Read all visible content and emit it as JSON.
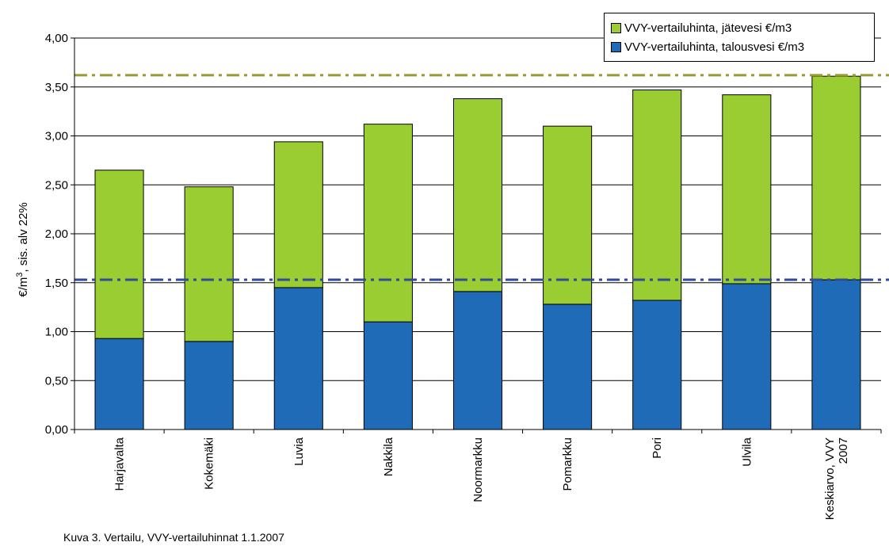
{
  "chart_data": {
    "type": "bar",
    "stacked": true,
    "categories": [
      "Harjavalta",
      "Kokemäki",
      "Luvia",
      "Nakkila",
      "Noormarkku",
      "Pomarkku",
      "Pori",
      "Ulvila",
      "Keskiarvo, VVY 2007"
    ],
    "category_lines": [
      [
        "Harjavalta"
      ],
      [
        "Kokemäki"
      ],
      [
        "Luvia"
      ],
      [
        "Nakkila"
      ],
      [
        "Noormarkku"
      ],
      [
        "Pomarkku"
      ],
      [
        "Pori"
      ],
      [
        "Ulvila"
      ],
      [
        "Keskiarvo, VVY",
        "2007"
      ]
    ],
    "series": [
      {
        "name": "VVY-vertailuhinta, talousvesi €/m3",
        "color": "#1f6bb8",
        "values": [
          0.93,
          0.9,
          1.45,
          1.1,
          1.41,
          1.28,
          1.32,
          1.49,
          1.53
        ]
      },
      {
        "name": "VVY-vertailuhinta, jätevesi €/m3",
        "color": "#9acd32",
        "values": [
          1.72,
          1.58,
          1.49,
          2.02,
          1.97,
          1.82,
          2.15,
          1.93,
          2.08
        ]
      }
    ],
    "reference_lines": [
      {
        "value": 1.53,
        "color": "#2f4b9e"
      },
      {
        "value": 3.62,
        "color": "#9a9a32"
      }
    ],
    "ylabel_prefix": "€/m",
    "ylabel_sup": "3",
    "ylabel_suffix": ", sis. alv 22%",
    "ylim": [
      0,
      4
    ],
    "yticks": [
      "0,00",
      "0,50",
      "1,00",
      "1,50",
      "2,00",
      "2,50",
      "3,00",
      "3,50",
      "4,00"
    ],
    "grid": true,
    "legend_position": "top-right"
  },
  "legend": {
    "jatevesi": "VVY-vertailuhinta, jätevesi €/m3",
    "talousvesi": "VVY-vertailuhinta, talousvesi €/m3",
    "jatevesi_color": "#9acd32",
    "talousvesi_color": "#1f6bb8"
  },
  "footnote": "Kuva 3. Vertailu, VVY-vertailuhinnat 1.1.2007"
}
